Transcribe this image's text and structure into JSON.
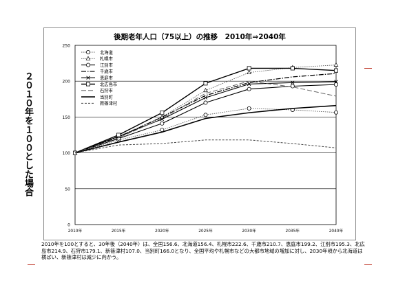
{
  "y_axis_label": "２０１０年を１００とした場合",
  "caption": "2010年を100とすると、30年後（2040年）は、全国156.6、北海道156.4、札幌市222.6、千歳市210.7、恵庭市199.2、江別市195.3、北広島市214.9、石狩市179.1、新篠津村107.0、当別町166.0となり、全国平均や札幌市などの大都市地域の増加に対し、2030年頃から北海道は横ばい、新篠津村は減少に向かう。",
  "chart_data": {
    "type": "line",
    "title": "後期老年人口（75以上）の推移　2010年⇒2040年",
    "xlabel": "",
    "ylabel": "２０１０年を１００とした場合",
    "categories": [
      "2010年",
      "2015年",
      "2020年",
      "2025年",
      "2030年",
      "2035年",
      "2040年"
    ],
    "ylim": [
      0,
      250
    ],
    "yticks": [
      0,
      50,
      100,
      150,
      200,
      250
    ],
    "grid": true,
    "legend_position": "top-left",
    "series": [
      {
        "name": "北海道",
        "style": "dotted-circle",
        "values": [
          100,
          118,
          132,
          153,
          162,
          160,
          156.4
        ]
      },
      {
        "name": "札幌市",
        "style": "dotted-triangle",
        "values": [
          100,
          123,
          150,
          187,
          212,
          219,
          222.6
        ]
      },
      {
        "name": "江別市",
        "style": "solid-circle",
        "values": [
          100,
          120,
          141,
          170,
          189,
          193,
          195.3
        ]
      },
      {
        "name": "千歳市",
        "style": "dashdot",
        "values": [
          100,
          122,
          150,
          180,
          198,
          206,
          210.7
        ]
      },
      {
        "name": "恵庭市",
        "style": "solid-x",
        "values": [
          100,
          123,
          147,
          177,
          196,
          198,
          199.2
        ]
      },
      {
        "name": "北広島市",
        "style": "solid-square",
        "values": [
          100,
          125,
          156,
          197,
          218,
          218,
          214.9
        ]
      },
      {
        "name": "石狩市",
        "style": "long-dash",
        "values": [
          100,
          121,
          148,
          183,
          200,
          192,
          179.1
        ]
      },
      {
        "name": "当別町",
        "style": "thick-solid",
        "values": [
          100,
          115,
          129,
          148,
          156,
          162,
          166.0
        ]
      },
      {
        "name": "新篠津村",
        "style": "short-dash",
        "values": [
          100,
          111,
          113,
          118,
          118,
          113,
          107.0
        ]
      }
    ]
  }
}
